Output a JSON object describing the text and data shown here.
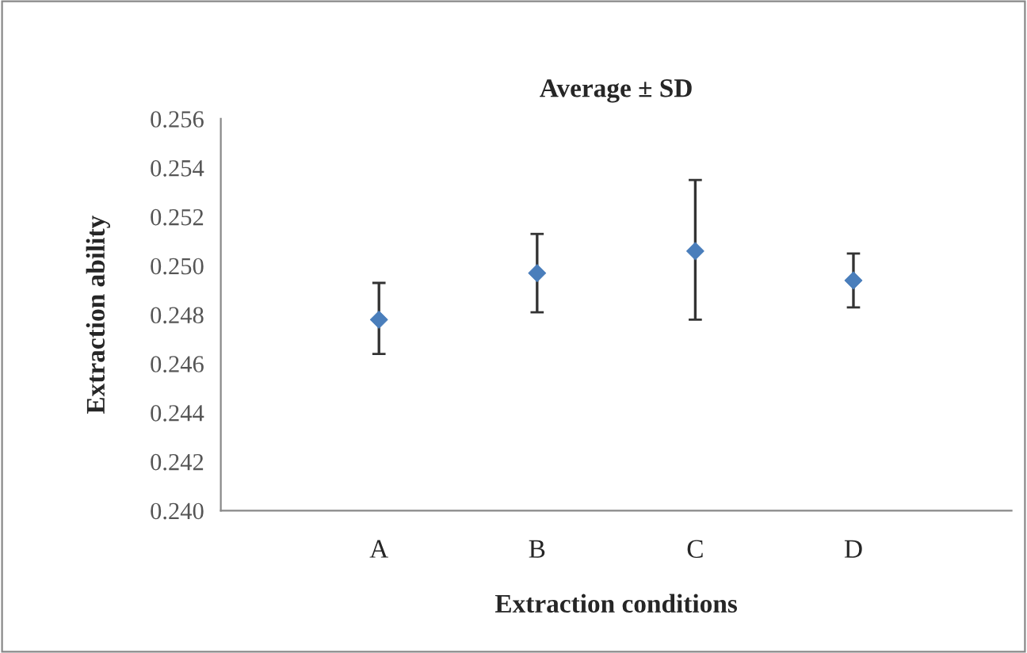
{
  "chart_data": {
    "type": "scatter",
    "title": "Average ± SD",
    "xlabel": "Extraction conditions",
    "ylabel": "Extraction ability",
    "categories": [
      "A",
      "B",
      "C",
      "D"
    ],
    "series": [
      {
        "color": "#4a7ebb",
        "values": [
          0.2478,
          0.2497,
          0.2506,
          0.2494
        ],
        "errors": [
          [
            0.2464,
            0.2493
          ],
          [
            0.2481,
            0.2513
          ],
          [
            0.2478,
            0.2535
          ],
          [
            0.2483,
            0.2505
          ]
        ]
      }
    ],
    "ylim": [
      0.24,
      0.256
    ],
    "yticks": [
      {
        "value": 0.24,
        "label": "0.240"
      },
      0.242,
      0.244,
      0.246,
      0.248,
      {
        "value": 0.25,
        "label": "0.250"
      },
      0.252,
      0.254,
      0.256
    ],
    "marker": "diamond",
    "grid": false,
    "legend": false
  }
}
